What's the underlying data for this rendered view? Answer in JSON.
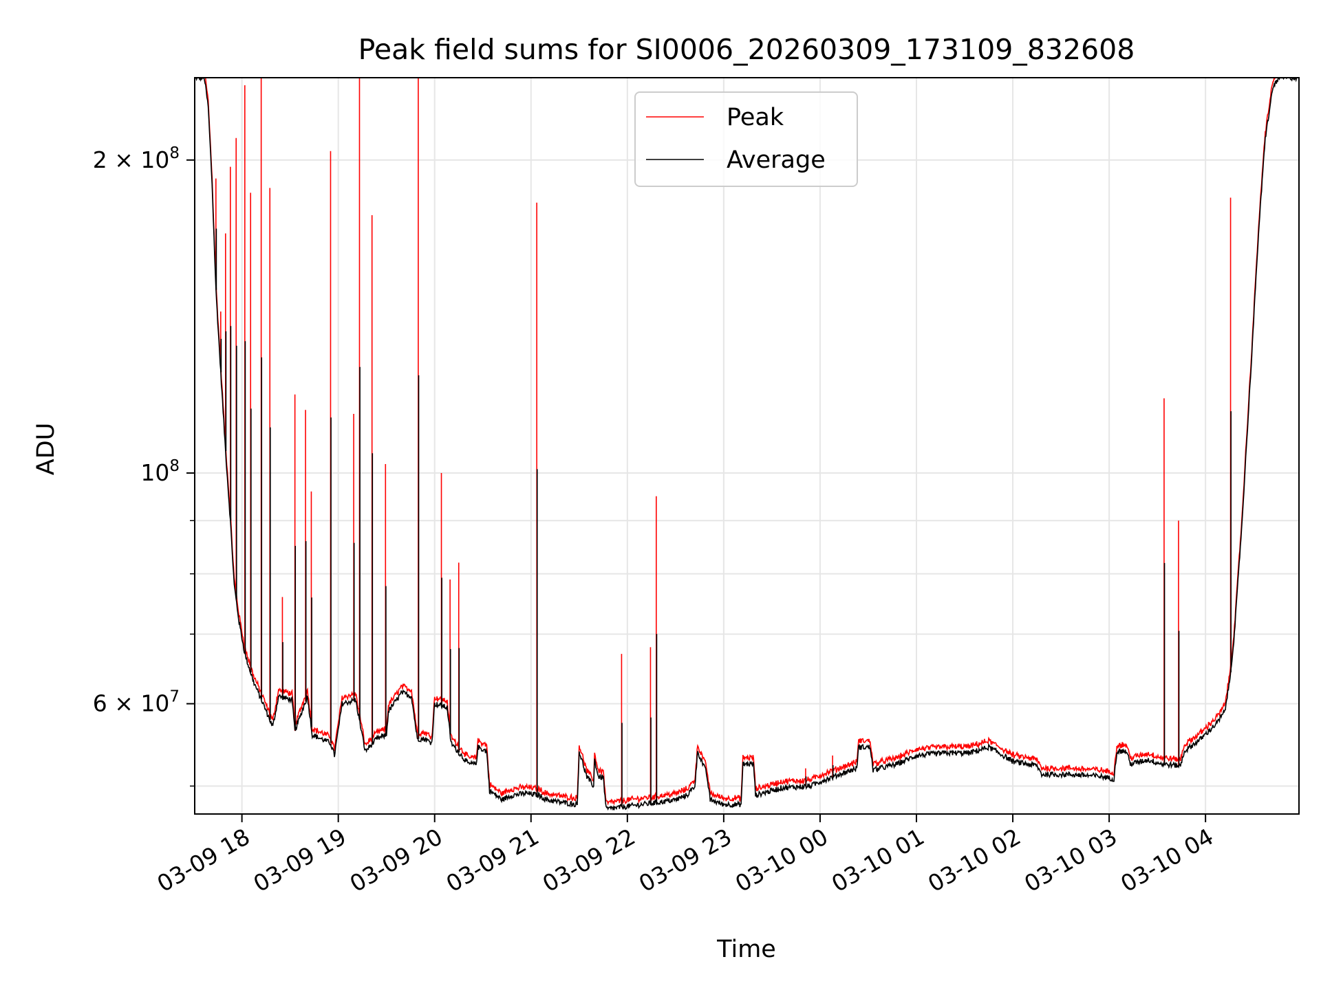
{
  "chart_data": {
    "type": "line",
    "title": "Peak field sums for SI0006_20260309_173109_832608",
    "xlabel": "Time",
    "ylabel": "ADU",
    "yscale": "log",
    "ylim": [
      47000000,
      240000000
    ],
    "xlim_hours": [
      17.51,
      28.97
    ],
    "grid": true,
    "legend": {
      "placement": "top-center",
      "entries": [
        "Peak",
        "Average"
      ]
    },
    "x_ticks": [
      {
        "hour": 18,
        "label": "03-09 18"
      },
      {
        "hour": 19,
        "label": "03-09 19"
      },
      {
        "hour": 20,
        "label": "03-09 20"
      },
      {
        "hour": 21,
        "label": "03-09 21"
      },
      {
        "hour": 22,
        "label": "03-09 22"
      },
      {
        "hour": 23,
        "label": "03-09 23"
      },
      {
        "hour": 24,
        "label": "03-10 00"
      },
      {
        "hour": 25,
        "label": "03-10 01"
      },
      {
        "hour": 26,
        "label": "03-10 02"
      },
      {
        "hour": 27,
        "label": "03-10 03"
      },
      {
        "hour": 28,
        "label": "03-10 04"
      }
    ],
    "y_major_ticks": [
      {
        "value": 60000000,
        "mantissa": "6",
        "label": "6 × 10⁷"
      },
      {
        "value": 100000000,
        "mantissa": "",
        "label": "10⁸"
      },
      {
        "value": 200000000,
        "mantissa": "2",
        "label": "2 × 10⁸"
      }
    ],
    "y_minor_ticks": [
      50000000,
      70000000,
      80000000,
      90000000
    ],
    "series": [
      {
        "name": "Average",
        "color": "#000000",
        "baseline": [
          [
            17.51,
            240000000
          ],
          [
            17.61,
            240000000
          ],
          [
            17.65,
            225000000
          ],
          [
            17.69,
            190000000
          ],
          [
            17.73,
            150000000
          ],
          [
            17.78,
            125000000
          ],
          [
            17.83,
            105000000
          ],
          [
            17.88,
            90000000
          ],
          [
            17.92,
            78000000
          ],
          [
            17.97,
            72000000
          ],
          [
            18.03,
            67000000
          ],
          [
            18.12,
            63000000
          ],
          [
            18.22,
            60000000
          ],
          [
            18.32,
            57000000
          ],
          [
            18.38,
            61000000
          ],
          [
            18.52,
            60500000
          ],
          [
            18.55,
            56500000
          ],
          [
            18.68,
            61000000
          ],
          [
            18.73,
            56000000
          ],
          [
            18.92,
            55000000
          ],
          [
            18.96,
            53500000
          ],
          [
            19.04,
            60000000
          ],
          [
            19.18,
            60500000
          ],
          [
            19.28,
            54000000
          ],
          [
            19.4,
            55500000
          ],
          [
            19.5,
            56000000
          ],
          [
            19.52,
            59000000
          ],
          [
            19.66,
            61500000
          ],
          [
            19.76,
            61000000
          ],
          [
            19.82,
            55500000
          ],
          [
            19.9,
            55500000
          ],
          [
            19.97,
            55000000
          ],
          [
            20.0,
            60000000
          ],
          [
            20.13,
            59500000
          ],
          [
            20.17,
            55000000
          ],
          [
            20.35,
            52500000
          ],
          [
            20.43,
            52500000
          ],
          [
            20.45,
            54500000
          ],
          [
            20.54,
            54000000
          ],
          [
            20.57,
            49500000
          ],
          [
            20.7,
            48500000
          ],
          [
            20.8,
            49000000
          ],
          [
            20.95,
            49200000
          ],
          [
            21.08,
            49000000
          ],
          [
            21.16,
            48500000
          ],
          [
            21.33,
            48200000
          ],
          [
            21.48,
            48000000
          ],
          [
            21.5,
            54000000
          ],
          [
            21.58,
            51000000
          ],
          [
            21.65,
            50000000
          ],
          [
            21.66,
            53000000
          ],
          [
            21.7,
            51000000
          ],
          [
            21.75,
            51000000
          ],
          [
            21.78,
            47500000
          ],
          [
            22.0,
            47800000
          ],
          [
            22.3,
            48200000
          ],
          [
            22.5,
            48500000
          ],
          [
            22.62,
            49000000
          ],
          [
            22.7,
            50000000
          ],
          [
            22.73,
            54000000
          ],
          [
            22.82,
            51500000
          ],
          [
            22.86,
            48500000
          ],
          [
            23.0,
            48000000
          ],
          [
            23.18,
            48000000
          ],
          [
            23.2,
            52500000
          ],
          [
            23.31,
            52500000
          ],
          [
            23.33,
            49000000
          ],
          [
            23.6,
            49800000
          ],
          [
            23.9,
            50000000
          ],
          [
            24.0,
            50500000
          ],
          [
            24.25,
            51500000
          ],
          [
            24.38,
            52000000
          ],
          [
            24.4,
            54500000
          ],
          [
            24.52,
            54500000
          ],
          [
            24.55,
            51800000
          ],
          [
            24.8,
            52500000
          ],
          [
            25.0,
            53500000
          ],
          [
            25.3,
            53800000
          ],
          [
            25.55,
            53800000
          ],
          [
            25.75,
            54500000
          ],
          [
            25.9,
            53500000
          ],
          [
            26.0,
            52800000
          ],
          [
            26.25,
            52300000
          ],
          [
            26.3,
            51300000
          ],
          [
            26.6,
            51300000
          ],
          [
            26.9,
            51100000
          ],
          [
            27.05,
            50800000
          ],
          [
            27.08,
            54000000
          ],
          [
            27.18,
            54000000
          ],
          [
            27.22,
            52500000
          ],
          [
            27.4,
            53000000
          ],
          [
            27.55,
            52500000
          ],
          [
            27.74,
            52300000
          ],
          [
            27.78,
            54000000
          ],
          [
            27.95,
            55500000
          ],
          [
            28.12,
            57500000
          ],
          [
            28.2,
            59000000
          ],
          [
            28.25,
            63000000
          ],
          [
            28.3,
            70000000
          ],
          [
            28.38,
            90000000
          ],
          [
            28.48,
            130000000
          ],
          [
            28.55,
            170000000
          ],
          [
            28.62,
            210000000
          ],
          [
            28.7,
            235000000
          ],
          [
            28.76,
            240000000
          ],
          [
            28.97,
            240000000
          ]
        ]
      },
      {
        "name": "Peak",
        "color": "#ff0000",
        "offset_factor": 1.012,
        "spikes": [
          [
            17.73,
            192000000
          ],
          [
            17.78,
            143000000
          ],
          [
            17.83,
            170000000
          ],
          [
            17.88,
            197000000
          ],
          [
            17.94,
            210000000
          ],
          [
            18.03,
            236000000
          ],
          [
            18.09,
            186000000
          ],
          [
            18.2,
            240000000
          ],
          [
            18.29,
            188000000
          ],
          [
            18.42,
            76000000
          ],
          [
            18.55,
            119000000
          ],
          [
            18.66,
            115000000
          ],
          [
            18.72,
            96000000
          ],
          [
            18.92,
            204000000
          ],
          [
            19.16,
            114000000
          ],
          [
            19.22,
            240000000
          ],
          [
            19.35,
            177000000
          ],
          [
            19.49,
            102000000
          ],
          [
            19.83,
            240000000
          ],
          [
            20.07,
            100000000
          ],
          [
            20.16,
            79000000
          ],
          [
            20.25,
            82000000
          ],
          [
            21.06,
            182000000
          ],
          [
            21.94,
            67000000
          ],
          [
            22.24,
            68000000
          ],
          [
            22.3,
            95000000
          ],
          [
            23.85,
            52000000
          ],
          [
            24.13,
            53500000
          ],
          [
            27.57,
            118000000
          ],
          [
            27.72,
            90000000
          ],
          [
            28.26,
            184000000
          ]
        ]
      }
    ]
  }
}
